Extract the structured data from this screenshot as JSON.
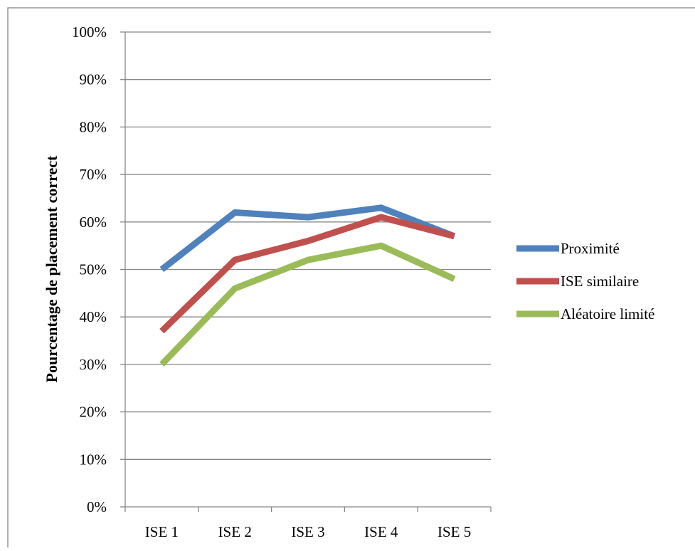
{
  "chart_data": {
    "type": "line",
    "categories": [
      "ISE 1",
      "ISE 2",
      "ISE 3",
      "ISE 4",
      "ISE 5"
    ],
    "series": [
      {
        "name": "Proximité",
        "values": [
          50,
          62,
          61,
          63,
          57
        ],
        "color": "#4F81BD"
      },
      {
        "name": "ISE similaire",
        "values": [
          37,
          52,
          56,
          61,
          57
        ],
        "color": "#C0504D"
      },
      {
        "name": "Aléatoire limité",
        "values": [
          30,
          46,
          52,
          55,
          48
        ],
        "color": "#9BBB59"
      }
    ],
    "title": "",
    "xlabel": "",
    "ylabel": "Pourcentage de placement correct",
    "ylim": [
      0,
      100
    ],
    "yticks": [
      "0%",
      "10%",
      "20%",
      "30%",
      "40%",
      "50%",
      "60%",
      "70%",
      "80%",
      "90%",
      "100%"
    ],
    "grid": true,
    "legend_position": "right"
  }
}
